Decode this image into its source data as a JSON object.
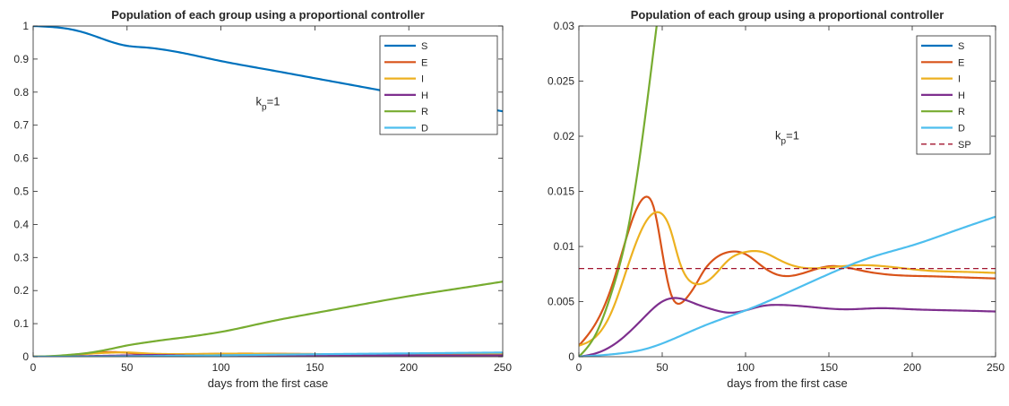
{
  "colors": {
    "S": "#0072bd",
    "E": "#d95319",
    "I": "#edb120",
    "H": "#7e2f8e",
    "R": "#77ac30",
    "D": "#4dbeee",
    "SP": "#a2142f"
  },
  "chart_data": [
    {
      "type": "line",
      "title": "Population of each group using a proportional controller",
      "xlabel": "days from the first case",
      "ylabel": "",
      "xlim": [
        0,
        250
      ],
      "ylim": [
        0,
        1
      ],
      "xticks": [
        "0",
        "50",
        "100",
        "150",
        "200",
        "250"
      ],
      "yticks": [
        "0",
        "0.1",
        "0.2",
        "0.3",
        "0.4",
        "0.5",
        "0.6",
        "0.7",
        "0.8",
        "0.9",
        "1"
      ],
      "grid": false,
      "legend_position": "top-right",
      "annotation": {
        "base": "k",
        "sub": "p",
        "rest": "=1",
        "x": 125,
        "y": 0.76
      },
      "series": [
        {
          "name": "S",
          "x": [
            0,
            10,
            20,
            30,
            40,
            50,
            60,
            70,
            80,
            90,
            100,
            125,
            150,
            175,
            200,
            225,
            250
          ],
          "y": [
            1.0,
            0.997,
            0.99,
            0.975,
            0.955,
            0.94,
            0.935,
            0.928,
            0.918,
            0.906,
            0.894,
            0.868,
            0.842,
            0.816,
            0.79,
            0.766,
            0.742
          ]
        },
        {
          "name": "E",
          "x": [
            0,
            20,
            30,
            40,
            50,
            60,
            80,
            100,
            150,
            200,
            250
          ],
          "y": [
            0.001,
            0.004,
            0.01,
            0.014,
            0.012,
            0.008,
            0.007,
            0.009,
            0.008,
            0.0075,
            0.007
          ]
        },
        {
          "name": "I",
          "x": [
            0,
            20,
            30,
            40,
            50,
            60,
            80,
            100,
            150,
            200,
            250
          ],
          "y": [
            0.001,
            0.004,
            0.009,
            0.012,
            0.013,
            0.01,
            0.008,
            0.009,
            0.008,
            0.008,
            0.0077
          ]
        },
        {
          "name": "H",
          "x": [
            0,
            30,
            50,
            60,
            80,
            100,
            150,
            200,
            250
          ],
          "y": [
            0.0,
            0.002,
            0.004,
            0.005,
            0.004,
            0.004,
            0.004,
            0.004,
            0.004
          ]
        },
        {
          "name": "R",
          "x": [
            0,
            10,
            20,
            30,
            40,
            50,
            60,
            70,
            80,
            90,
            100,
            125,
            150,
            175,
            200,
            225,
            250
          ],
          "y": [
            0.0,
            0.002,
            0.006,
            0.012,
            0.022,
            0.034,
            0.043,
            0.051,
            0.058,
            0.066,
            0.075,
            0.105,
            0.132,
            0.158,
            0.183,
            0.205,
            0.227
          ]
        },
        {
          "name": "D",
          "x": [
            0,
            25,
            50,
            100,
            150,
            200,
            250
          ],
          "y": [
            0.0,
            0.0003,
            0.0012,
            0.0042,
            0.0075,
            0.0101,
            0.0127
          ]
        }
      ]
    },
    {
      "type": "line",
      "title": "Population of each group using a proportional controller",
      "xlabel": "days from the first case",
      "ylabel": "",
      "xlim": [
        0,
        250
      ],
      "ylim": [
        0,
        0.03
      ],
      "xticks": [
        "0",
        "50",
        "100",
        "150",
        "200",
        "250"
      ],
      "yticks": [
        "0",
        "0.005",
        "0.01",
        "0.015",
        "0.02",
        "0.025",
        "0.03"
      ],
      "grid": false,
      "legend_position": "top-right",
      "annotation": {
        "base": "k",
        "sub": "p",
        "rest": "=1",
        "x": 125,
        "y": 0.0197
      },
      "series": [
        {
          "name": "S",
          "x": [],
          "y": []
        },
        {
          "name": "E",
          "x": [
            0,
            10,
            20,
            30,
            40,
            45,
            50,
            55,
            60,
            65,
            70,
            75,
            80,
            90,
            100,
            110,
            120,
            130,
            150,
            170,
            190,
            210,
            230,
            250
          ],
          "y": [
            0.001,
            0.003,
            0.0065,
            0.0115,
            0.0145,
            0.0135,
            0.0095,
            0.0058,
            0.0048,
            0.0054,
            0.0065,
            0.0078,
            0.0087,
            0.0095,
            0.0093,
            0.0082,
            0.0074,
            0.0074,
            0.0082,
            0.0078,
            0.0074,
            0.0073,
            0.0072,
            0.0071
          ]
        },
        {
          "name": "I",
          "x": [
            0,
            10,
            20,
            30,
            40,
            48,
            55,
            60,
            70,
            80,
            90,
            100,
            110,
            120,
            130,
            150,
            170,
            190,
            210,
            230,
            250
          ],
          "y": [
            0.001,
            0.0018,
            0.0042,
            0.0085,
            0.0122,
            0.0131,
            0.0115,
            0.0088,
            0.0066,
            0.0072,
            0.0088,
            0.0095,
            0.0095,
            0.0088,
            0.0082,
            0.0081,
            0.0083,
            0.0081,
            0.0078,
            0.0077,
            0.0076
          ]
        },
        {
          "name": "H",
          "x": [
            0,
            10,
            20,
            30,
            40,
            50,
            60,
            70,
            80,
            90,
            100,
            110,
            120,
            140,
            160,
            180,
            200,
            225,
            250
          ],
          "y": [
            0.0,
            0.0003,
            0.001,
            0.0022,
            0.0037,
            0.005,
            0.0053,
            0.0048,
            0.0043,
            0.004,
            0.0042,
            0.0046,
            0.0047,
            0.0045,
            0.0043,
            0.0044,
            0.0043,
            0.0042,
            0.0041
          ]
        },
        {
          "name": "R",
          "x": [
            0,
            10,
            20,
            30,
            40,
            45,
            50
          ],
          "y": [
            0.0,
            0.002,
            0.006,
            0.012,
            0.022,
            0.028,
            0.034
          ]
        },
        {
          "name": "D",
          "x": [
            0,
            25,
            40,
            50,
            75,
            100,
            125,
            150,
            175,
            200,
            225,
            250
          ],
          "y": [
            0.0,
            0.0003,
            0.0007,
            0.0012,
            0.0028,
            0.0042,
            0.0058,
            0.0075,
            0.009,
            0.0101,
            0.0114,
            0.0127
          ]
        },
        {
          "name": "SP",
          "x": [
            0,
            250
          ],
          "y": [
            0.008,
            0.008
          ],
          "dashed": true
        }
      ]
    }
  ]
}
